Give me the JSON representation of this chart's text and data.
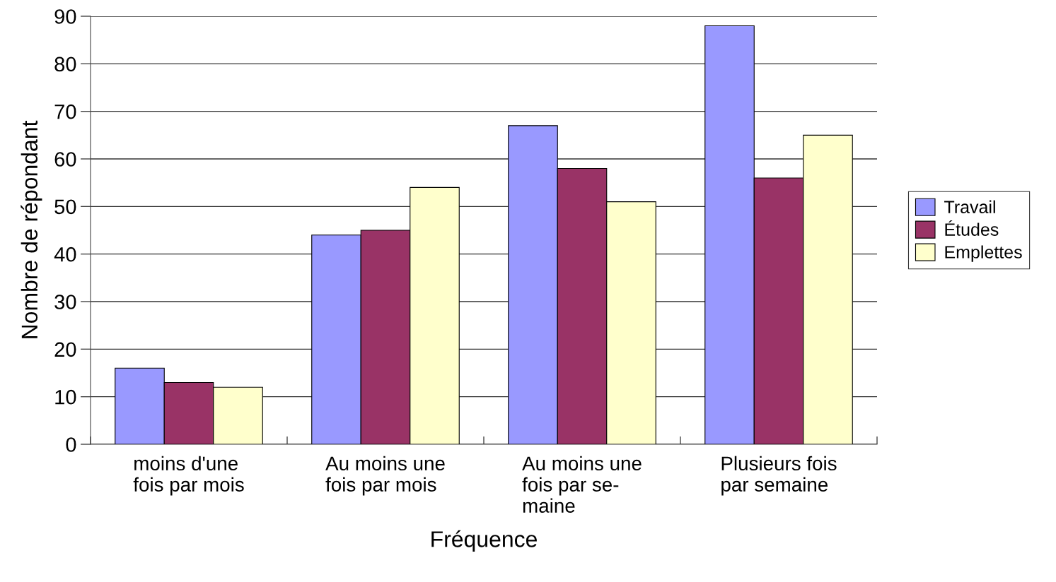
{
  "chart_data": {
    "type": "bar",
    "xlabel": "Fréquence",
    "ylabel": "Nombre de répondant",
    "categories": [
      "moins d'une\nfois par mois",
      "Au moins une\nfois par mois",
      "Au moins une\nfois par se-\nmaine",
      "Plusieurs fois\npar semaine"
    ],
    "series": [
      {
        "name": "Travail",
        "color": "#9999ff",
        "values": [
          16,
          44,
          67,
          88
        ]
      },
      {
        "name": "Études",
        "color": "#993366",
        "values": [
          13,
          45,
          58,
          56
        ]
      },
      {
        "name": "Emplettes",
        "color": "#ffffcc",
        "values": [
          12,
          54,
          51,
          65
        ]
      }
    ],
    "ylim": [
      0,
      90
    ],
    "yticks": [
      0,
      10,
      20,
      30,
      40,
      50,
      60,
      70,
      80,
      90
    ],
    "grid": "y",
    "legend": "right"
  }
}
